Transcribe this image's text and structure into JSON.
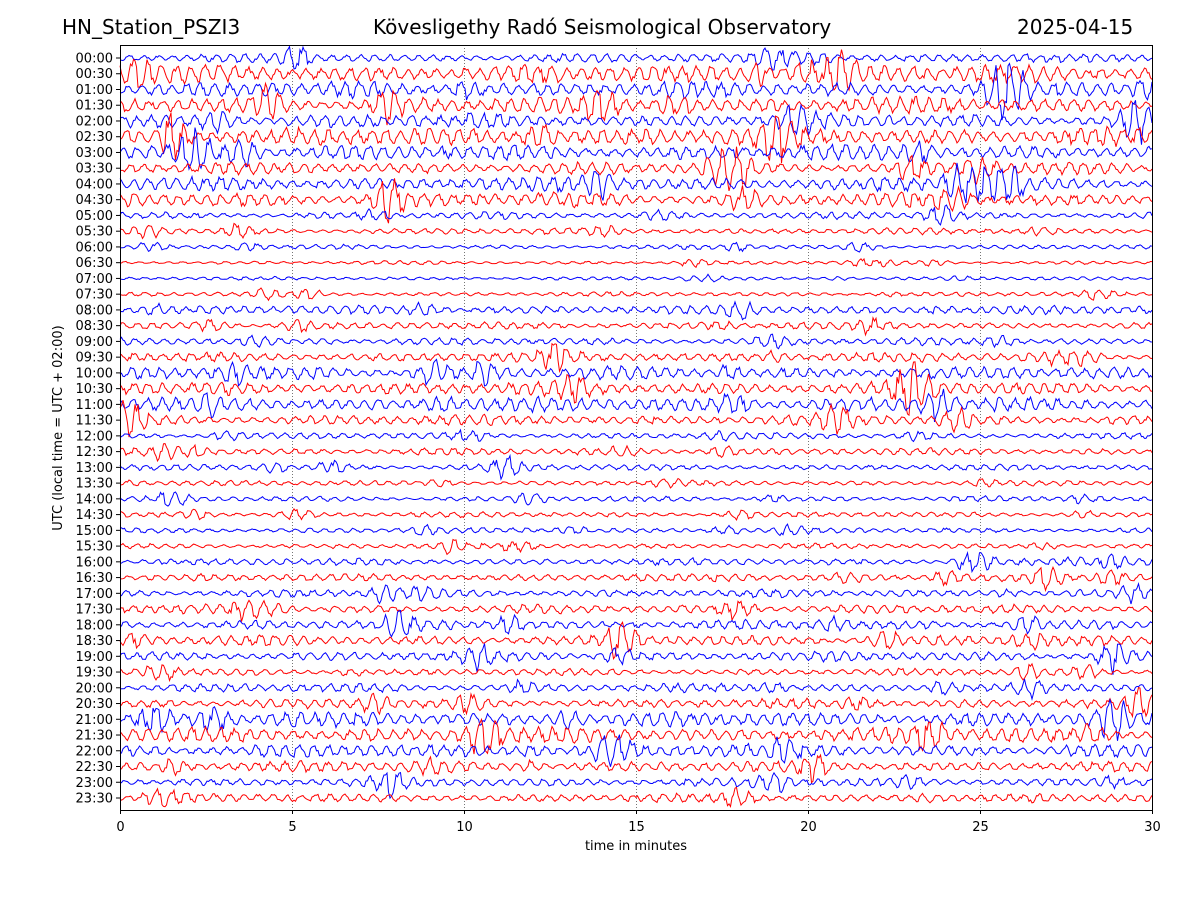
{
  "header": {
    "station": "HN_Station_PSZI3",
    "observatory": "Kövesligethy Radó Seismological Observatory",
    "date": "2025-04-15"
  },
  "chart_data": {
    "type": "line",
    "title": "Kövesligethy Radó Seismological Observatory",
    "xlabel": "time in minutes",
    "ylabel": "UTC (local time = UTC + 02:00)",
    "xlim": [
      0,
      30
    ],
    "xticks": [
      "0",
      "5",
      "10",
      "15",
      "20",
      "25",
      "30"
    ],
    "xtick_values": [
      0,
      5,
      10,
      15,
      20,
      25,
      30
    ],
    "grid": "vertical dotted at x ticks",
    "colors": {
      "even_rows": "#0000ff",
      "odd_rows": "#ff0000"
    },
    "rows": [
      "00:00",
      "00:30",
      "01:00",
      "01:30",
      "02:00",
      "02:30",
      "03:00",
      "03:30",
      "04:00",
      "04:30",
      "05:00",
      "05:30",
      "06:00",
      "06:30",
      "07:00",
      "07:30",
      "08:00",
      "08:30",
      "09:00",
      "09:30",
      "10:00",
      "10:30",
      "11:00",
      "11:30",
      "12:00",
      "12:30",
      "13:00",
      "13:30",
      "14:00",
      "14:30",
      "15:00",
      "15:30",
      "16:00",
      "16:30",
      "17:00",
      "17:30",
      "18:00",
      "18:30",
      "19:00",
      "19:30",
      "20:00",
      "20:30",
      "21:00",
      "21:30",
      "22:00",
      "22:30",
      "23:00",
      "23:30"
    ],
    "relative_amplitude": [
      0.5,
      1.0,
      0.9,
      0.9,
      0.8,
      1.0,
      0.9,
      0.7,
      0.8,
      0.8,
      0.4,
      0.35,
      0.25,
      0.2,
      0.2,
      0.25,
      0.5,
      0.4,
      0.4,
      0.55,
      0.7,
      0.75,
      0.8,
      0.6,
      0.35,
      0.4,
      0.35,
      0.3,
      0.3,
      0.3,
      0.3,
      0.3,
      0.4,
      0.45,
      0.45,
      0.5,
      0.55,
      0.6,
      0.55,
      0.4,
      0.5,
      0.55,
      0.85,
      0.85,
      0.75,
      0.6,
      0.5,
      0.5
    ]
  }
}
